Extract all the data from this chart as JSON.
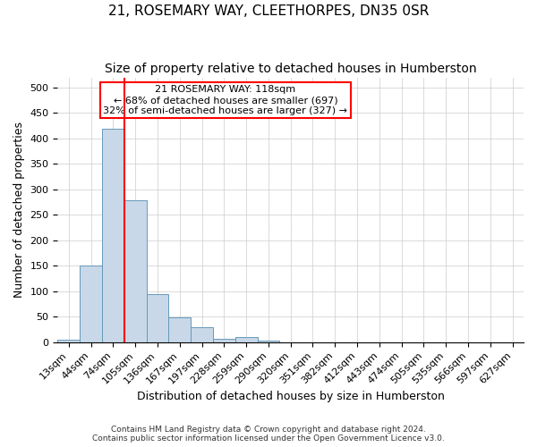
{
  "title": "21, ROSEMARY WAY, CLEETHORPES, DN35 0SR",
  "subtitle": "Size of property relative to detached houses in Humberston",
  "xlabel": "Distribution of detached houses by size in Humberston",
  "ylabel": "Number of detached properties",
  "footer_line1": "Contains HM Land Registry data © Crown copyright and database right 2024.",
  "footer_line2": "Contains public sector information licensed under the Open Government Licence v3.0.",
  "bar_labels": [
    "13sqm",
    "44sqm",
    "74sqm",
    "105sqm",
    "136sqm",
    "167sqm",
    "197sqm",
    "228sqm",
    "259sqm",
    "290sqm",
    "320sqm",
    "351sqm",
    "382sqm",
    "412sqm",
    "443sqm",
    "474sqm",
    "505sqm",
    "535sqm",
    "566sqm",
    "597sqm",
    "627sqm"
  ],
  "bar_values": [
    5,
    150,
    420,
    278,
    95,
    48,
    29,
    7,
    10,
    3,
    0,
    0,
    0,
    0,
    0,
    0,
    0,
    0,
    0,
    0,
    0
  ],
  "bar_color": "#c8d8e8",
  "bar_edge_color": "#6699bb",
  "ylim": [
    0,
    520
  ],
  "yticks": [
    0,
    50,
    100,
    150,
    200,
    250,
    300,
    350,
    400,
    450,
    500
  ],
  "annotation_line1": "21 ROSEMARY WAY: 118sqm",
  "annotation_line2": "← 68% of detached houses are smaller (697)",
  "annotation_line3": "32% of semi-detached houses are larger (327) →",
  "red_line_x": 2.5,
  "title_fontsize": 11,
  "subtitle_fontsize": 10,
  "axis_label_fontsize": 9,
  "tick_fontsize": 8,
  "annotation_fontsize": 8,
  "background_color": "#ffffff",
  "grid_color": "#cccccc"
}
